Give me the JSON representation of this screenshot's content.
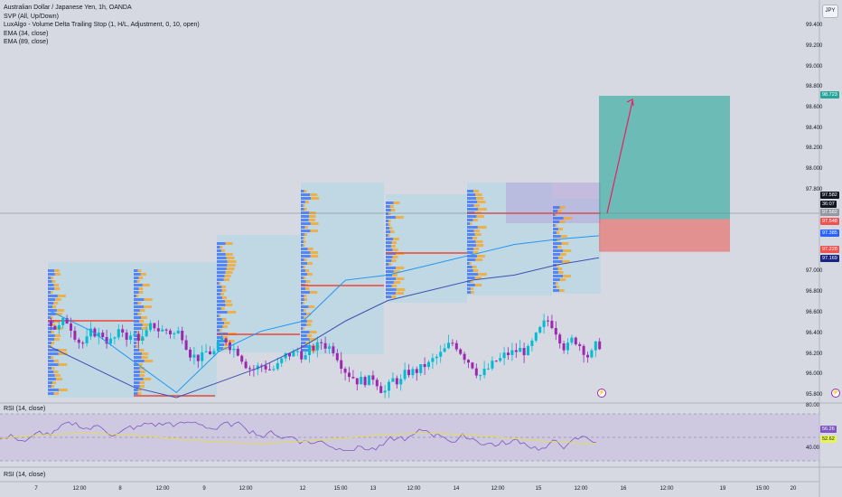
{
  "legend": {
    "symbol": "Australian Dollar / Japanese Yen, 1h, OANDA",
    "svp": "SVP (All, Up/Down)",
    "luxalgo": "LuxAlgo - Volume Delta Trailing Stop (1, H/L, Adjustment, 0, 10, open)",
    "ema34": "EMA (34, close)",
    "ema89": "EMA (89, close)"
  },
  "currency_button": "JPY",
  "price_axis": [
    "99.400",
    "99.200",
    "99.000",
    "98.800",
    "98.600",
    "98.400",
    "98.200",
    "98.000",
    "97.800",
    "97.000",
    "96.800",
    "96.600",
    "96.400",
    "96.200",
    "96.000",
    "95.800"
  ],
  "price_tags": [
    {
      "text": "98.723",
      "bg": "#26a69a"
    },
    {
      "text": "97.582",
      "bg": "#131722"
    },
    {
      "text": "36:07",
      "bg": "#131722"
    },
    {
      "text": "97.582",
      "bg": "#9598a1"
    },
    {
      "text": "97.548",
      "bg": "#ef5350"
    },
    {
      "text": "97.385",
      "bg": "#2962ff"
    },
    {
      "text": "97.228",
      "bg": "#ef5350"
    },
    {
      "text": "97.169",
      "bg": "#1a237e"
    }
  ],
  "rsi_panel_1": {
    "title": "RSI (14, close)",
    "axis": [
      "80.00",
      "40.00"
    ],
    "tags": [
      {
        "text": "56.26",
        "bg": "#7e57c2"
      },
      {
        "text": "52.62",
        "bg": "#e8f25a"
      }
    ]
  },
  "rsi_panel_2": {
    "title": "RSI (14, close)"
  },
  "time_axis": [
    "7",
    "12:00",
    "8",
    "12:00",
    "9",
    "12:00",
    "12",
    "15:00",
    "13",
    "12:00",
    "14",
    "12:00",
    "15",
    "12:00",
    "16",
    "12:00",
    "19",
    "15:00",
    "20"
  ],
  "colors": {
    "bull": "#00bcd4",
    "bear": "#9c27b0",
    "ema34": "#2196f3",
    "ema89": "#3f51b5",
    "target_zone": "#26a69a",
    "stop_zone": "#ef5350",
    "poc": "#f44336",
    "vol_up": "#2962ff",
    "vol_down": "#f9a825"
  },
  "chart_data": {
    "type": "line",
    "title": "Australian Dollar / Japanese Yen, 1h, OANDA",
    "x": [
      "7",
      "12:00",
      "8",
      "12:00",
      "9",
      "12:00",
      "12",
      "15:00",
      "13",
      "12:00",
      "14",
      "12:00",
      "15",
      "12:00"
    ],
    "series": [
      {
        "name": "EMA (34, close)",
        "values": [
          96.65,
          96.45,
          96.15,
          95.85,
          96.25,
          96.45,
          96.55,
          96.95,
          97.0,
          97.1,
          97.2,
          97.3,
          97.35,
          97.385
        ]
      },
      {
        "name": "EMA (89, close)",
        "values": [
          96.3,
          96.1,
          95.9,
          95.8,
          95.95,
          96.1,
          96.3,
          96.55,
          96.75,
          96.85,
          96.95,
          97.0,
          97.1,
          97.169
        ]
      }
    ],
    "position": {
      "entry": 97.548,
      "target": 98.723,
      "stop": 97.228,
      "last": 97.582
    },
    "ylim": [
      95.8,
      99.5
    ]
  }
}
